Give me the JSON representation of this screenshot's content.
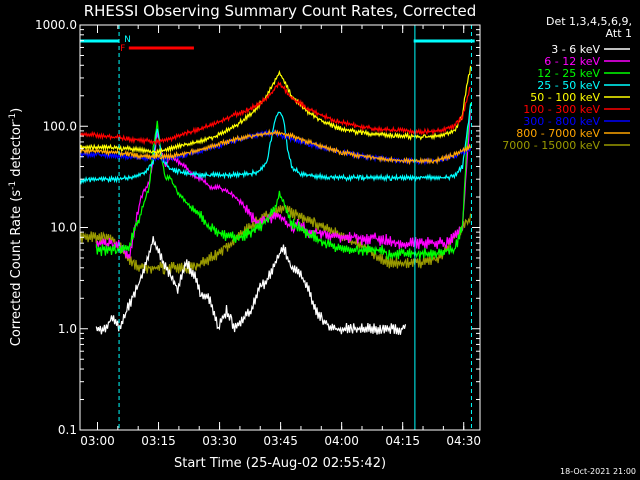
{
  "chart_data": {
    "type": "line",
    "title": "RHESSI Observing Summary Count Rates, Corrected",
    "xlabel": "Start Time (25-Aug-02 02:55:42)",
    "ylabel": "Corrected Count Rate (s⁻¹ detector⁻¹)",
    "ylabel_text": "Corrected Count Rate (s",
    "ylabel_sup1": "-1",
    "ylabel_mid": " detector",
    "ylabel_sup2": "-1",
    "ylabel_end": ")",
    "y_scale": "log",
    "ylim": [
      0.1,
      1000
    ],
    "xlim": [
      "02:55:42",
      "04:34:00"
    ],
    "y_ticks": [
      "0.1",
      "1.0",
      "10.0",
      "100.0",
      "1000.0"
    ],
    "y_tick_values": [
      0.1,
      1,
      10,
      100,
      1000
    ],
    "x_ticks": [
      "03:00",
      "03:15",
      "03:30",
      "03:45",
      "04:00",
      "04:15",
      "04:30"
    ],
    "x_tick_values": [
      4.3,
      19.3,
      34.3,
      49.3,
      64.3,
      79.3,
      94.3
    ],
    "legend_header": [
      "Det 1,3,4,5,6,9,",
      "Att 1"
    ],
    "legend_position": "right",
    "timestamp": "18-Oct-2021 21:00",
    "annotations": {
      "flare_flag": "F",
      "night_flag": "N"
    },
    "series": [
      {
        "name": "3 - 6 keV",
        "color": "#ffffff",
        "x": [
          4,
          6,
          8,
          10,
          12,
          14,
          16,
          18,
          20,
          22,
          24,
          26,
          28,
          30,
          32,
          34,
          36,
          38,
          40,
          42,
          44,
          46,
          48,
          50,
          52,
          54,
          56,
          58,
          60,
          62,
          64,
          66,
          68,
          70,
          72,
          74,
          76,
          78,
          80
        ],
        "y": [
          1.0,
          1.0,
          1.3,
          1.0,
          1.7,
          2.5,
          4.0,
          7.5,
          5.0,
          3.5,
          2.5,
          4.5,
          3.5,
          2.0,
          2.0,
          1.0,
          1.5,
          1.0,
          1.2,
          1.5,
          2.5,
          3.0,
          4.5,
          6.5,
          4.0,
          3.5,
          2.5,
          1.5,
          1.2,
          1.0,
          1.0,
          1.0,
          1.0,
          1.0,
          1.0,
          1.0,
          1.0,
          1.0,
          1.0
        ]
      },
      {
        "name": "6 - 12 keV",
        "color": "#ff00ff",
        "x": [
          4,
          8,
          10,
          12,
          13,
          15,
          17,
          18,
          19,
          20,
          21,
          22,
          24,
          26,
          28,
          30,
          32,
          34,
          36,
          38,
          40,
          42,
          44,
          46,
          48,
          50,
          52,
          54,
          56,
          58,
          60,
          62,
          64,
          66,
          68,
          70,
          72,
          74,
          76,
          78,
          80,
          82,
          84,
          86,
          88,
          90,
          92,
          94,
          95,
          96
        ],
        "y": [
          7.0,
          7.0,
          6.5,
          5.0,
          8.0,
          20,
          28,
          45,
          85,
          55,
          40,
          50,
          45,
          40,
          32,
          30,
          25,
          25,
          23,
          20,
          17,
          13,
          11,
          12,
          13,
          12,
          10,
          11,
          9,
          9,
          8.5,
          8,
          8,
          8,
          8,
          7.5,
          8,
          7.5,
          7.5,
          7,
          7,
          7,
          7,
          7,
          7,
          7,
          8,
          10,
          40,
          150
        ]
      },
      {
        "name": "12 - 25 keV",
        "color": "#00ff00",
        "x": [
          4,
          8,
          10,
          12,
          13,
          15,
          17,
          18,
          19,
          20,
          21,
          22,
          24,
          26,
          28,
          30,
          32,
          34,
          36,
          38,
          40,
          42,
          44,
          46,
          48,
          49,
          50,
          51,
          52,
          54,
          56,
          58,
          60,
          62,
          64,
          66,
          68,
          70,
          72,
          74,
          76,
          78,
          80,
          82,
          84,
          86,
          88,
          90,
          92,
          94,
          95,
          96
        ],
        "y": [
          6.0,
          6.0,
          6.0,
          6.0,
          8.5,
          14,
          25,
          60,
          110,
          50,
          30,
          32,
          22,
          18,
          15,
          13,
          10,
          9,
          8,
          8,
          8,
          9,
          10,
          12,
          15,
          22,
          18,
          14,
          11,
          10,
          8.5,
          8,
          7,
          6.5,
          6,
          6,
          6,
          6,
          6,
          6,
          5.5,
          5.5,
          5.5,
          5.5,
          5.5,
          5.5,
          5.5,
          6,
          6,
          10,
          60,
          170
        ]
      },
      {
        "name": "25 - 50 keV",
        "color": "#00ffff",
        "x": [
          0,
          4,
          8,
          12,
          16,
          18,
          19,
          20,
          22,
          26,
          30,
          34,
          38,
          42,
          44,
          46,
          47,
          48,
          49,
          50,
          51,
          52,
          54,
          58,
          62,
          66,
          70,
          74,
          78,
          82,
          86,
          90,
          92,
          94,
          95,
          96
        ],
        "y": [
          29,
          30,
          30,
          31,
          35,
          45,
          100,
          50,
          38,
          34,
          33,
          33,
          33,
          34,
          36,
          45,
          75,
          120,
          140,
          120,
          60,
          40,
          34,
          32,
          31,
          31,
          31,
          31,
          31,
          31,
          31,
          31,
          32,
          40,
          80,
          165
        ]
      },
      {
        "name": "50 - 100 keV",
        "color": "#ffff00",
        "x": [
          0,
          6,
          12,
          16,
          19,
          22,
          26,
          30,
          34,
          38,
          42,
          46,
          48,
          49,
          50,
          52,
          56,
          60,
          64,
          68,
          72,
          76,
          80,
          84,
          88,
          92,
          94,
          95,
          96
        ],
        "y": [
          62,
          62,
          60,
          58,
          55,
          60,
          66,
          72,
          82,
          100,
          130,
          200,
          290,
          340,
          290,
          200,
          140,
          110,
          95,
          88,
          84,
          82,
          80,
          78,
          80,
          90,
          130,
          250,
          380
        ]
      },
      {
        "name": "100 - 300 keV",
        "color": "#ff0000",
        "x": [
          0,
          6,
          12,
          16,
          19,
          22,
          26,
          30,
          34,
          38,
          42,
          46,
          48,
          49,
          50,
          52,
          56,
          60,
          64,
          68,
          72,
          76,
          80,
          84,
          88,
          92,
          94,
          95,
          96
        ],
        "y": [
          85,
          80,
          75,
          72,
          70,
          75,
          85,
          95,
          110,
          130,
          150,
          190,
          240,
          260,
          240,
          190,
          150,
          125,
          110,
          100,
          95,
          92,
          90,
          88,
          90,
          100,
          125,
          180,
          250
        ]
      },
      {
        "name": "300 - 800 keV",
        "color": "#0000ff",
        "x": [
          0,
          6,
          12,
          16,
          22,
          26,
          30,
          34,
          38,
          42,
          46,
          48,
          50,
          52,
          56,
          60,
          64,
          68,
          72,
          76,
          80,
          84,
          88,
          92,
          94,
          96
        ],
        "y": [
          53,
          52,
          50,
          48,
          48,
          52,
          57,
          64,
          72,
          80,
          85,
          85,
          80,
          75,
          67,
          60,
          56,
          52,
          49,
          47,
          46,
          45,
          46,
          50,
          55,
          60
        ]
      },
      {
        "name": "800 - 7000 keV",
        "color": "#ffa500",
        "x": [
          0,
          6,
          12,
          16,
          22,
          26,
          30,
          34,
          38,
          42,
          46,
          48,
          50,
          52,
          56,
          60,
          64,
          68,
          72,
          76,
          80,
          84,
          88,
          92,
          94,
          96
        ],
        "y": [
          58,
          56,
          53,
          50,
          50,
          54,
          60,
          66,
          74,
          80,
          85,
          87,
          84,
          80,
          70,
          62,
          56,
          52,
          49,
          47,
          46,
          45,
          46,
          52,
          57,
          62
        ]
      },
      {
        "name": "7000 - 15000 keV",
        "color": "#999900",
        "x": [
          0,
          4,
          8,
          10,
          12,
          14,
          16,
          18,
          20,
          22,
          24,
          26,
          28,
          30,
          32,
          34,
          36,
          38,
          40,
          42,
          44,
          46,
          48,
          50,
          52,
          54,
          56,
          58,
          60,
          62,
          64,
          66,
          68,
          70,
          72,
          74,
          76,
          78,
          80,
          82,
          84,
          86,
          88,
          90,
          92,
          94,
          96
        ],
        "y": [
          8,
          8,
          7.5,
          6.5,
          5,
          4.2,
          4,
          4,
          4,
          4,
          4,
          4,
          4,
          4.5,
          5,
          5.5,
          6.5,
          7.5,
          9,
          10,
          12,
          13,
          14,
          15,
          14,
          13,
          12,
          11,
          10,
          9,
          8.5,
          7.5,
          7,
          6.5,
          5.5,
          5,
          4.5,
          4.5,
          4.5,
          4.5,
          4.5,
          4.7,
          5,
          6,
          8,
          10,
          12
        ]
      }
    ],
    "bars": {
      "night": {
        "color": "#00ffff",
        "label": "N",
        "intervals": [
          [
            0,
            9.6
          ],
          [
            82,
            97
          ]
        ]
      },
      "flare": {
        "color": "#ff0000",
        "label": "F",
        "intervals": [
          [
            12,
            28
          ]
        ]
      }
    },
    "vlines": {
      "solid": {
        "color": "#00ffff",
        "x": [
          0,
          82.3
        ]
      },
      "dashed": {
        "color": "#00ffff",
        "x": [
          9.6,
          96.2
        ]
      }
    }
  }
}
